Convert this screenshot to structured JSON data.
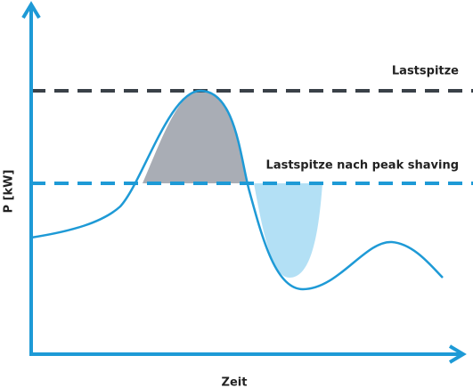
{
  "labels": {
    "peak": "Lastspitze",
    "shaved_peak": "Lastspitze nach peak shaving",
    "y_axis": "P [kW]",
    "x_axis": "Zeit"
  }
}
